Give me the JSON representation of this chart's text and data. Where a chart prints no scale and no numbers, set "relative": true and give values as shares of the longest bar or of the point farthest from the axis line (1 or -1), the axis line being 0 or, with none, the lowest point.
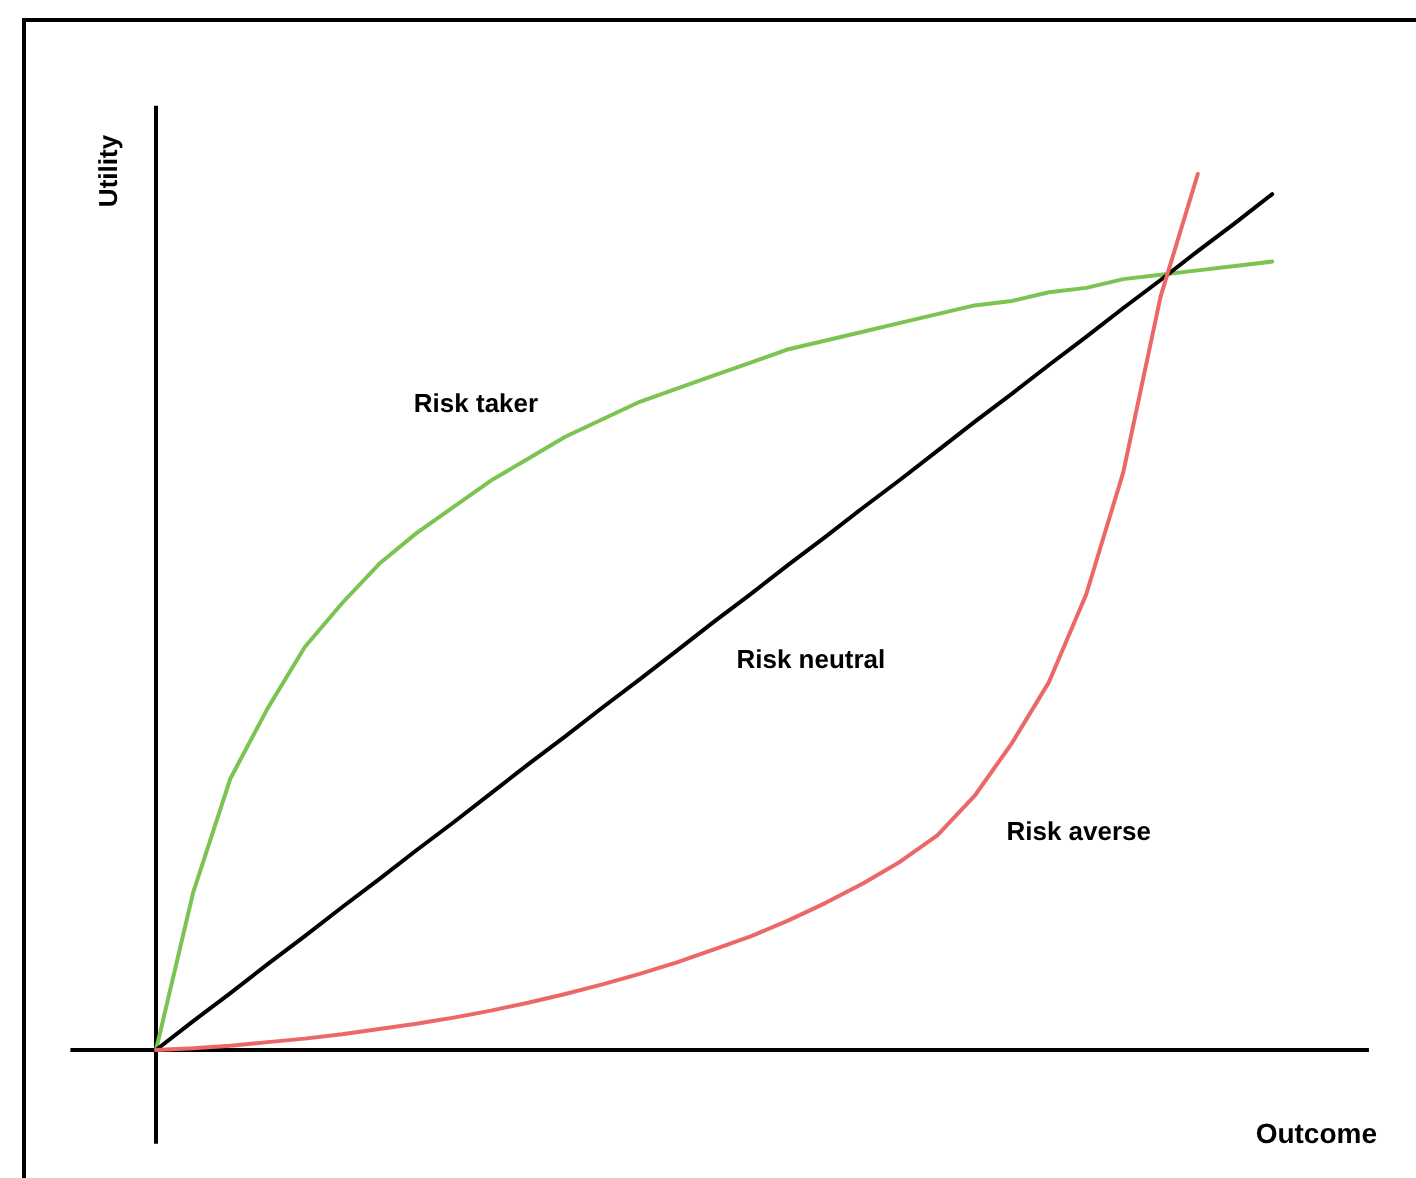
{
  "chart_data": {
    "type": "line",
    "relative": true,
    "xlabel": "Outcome",
    "ylabel": "Utility",
    "line_style": "solid",
    "categories": [
      null,
      null,
      null,
      null,
      null,
      null,
      null,
      null,
      null,
      null,
      null,
      null,
      null,
      null,
      null,
      null,
      null,
      null,
      null,
      null,
      null,
      null,
      null,
      null,
      null,
      null,
      null,
      null,
      null,
      null,
      null
    ],
    "series": [
      {
        "name": "Risk taker",
        "color": "#7cc451",
        "values": [
          0,
          0.18,
          0.31,
          0.39,
          0.46,
          0.51,
          0.555,
          0.59,
          0.62,
          0.65,
          0.675,
          0.7,
          0.72,
          0.74,
          0.755,
          0.77,
          0.785,
          0.8,
          0.81,
          0.82,
          0.83,
          0.84,
          0.85,
          0.855,
          0.865,
          0.87,
          0.88,
          0.885,
          0.89,
          0.895,
          0.9
        ]
      },
      {
        "name": "Risk neutral",
        "color": "#000000",
        "values": [
          0,
          0.033,
          0.065,
          0.098,
          0.13,
          0.163,
          0.195,
          0.228,
          0.26,
          0.293,
          0.326,
          0.358,
          0.391,
          0.423,
          0.456,
          0.489,
          0.521,
          0.554,
          0.586,
          0.619,
          0.651,
          0.684,
          0.717,
          0.749,
          0.782,
          0.814,
          0.847,
          0.879,
          0.912,
          0.944,
          0.977
        ]
      },
      {
        "name": "Risk averse",
        "color": "#ec6767",
        "values": [
          0,
          0.002,
          0.005,
          0.009,
          0.013,
          0.018,
          0.024,
          0.03,
          0.037,
          0.045,
          0.054,
          0.064,
          0.075,
          0.087,
          0.1,
          0.115,
          0.13,
          0.148,
          0.168,
          0.19,
          0.215,
          0.245,
          0.29,
          0.35,
          0.42,
          0.52,
          0.66,
          0.86,
          1,
          null,
          null
        ]
      }
    ]
  }
}
